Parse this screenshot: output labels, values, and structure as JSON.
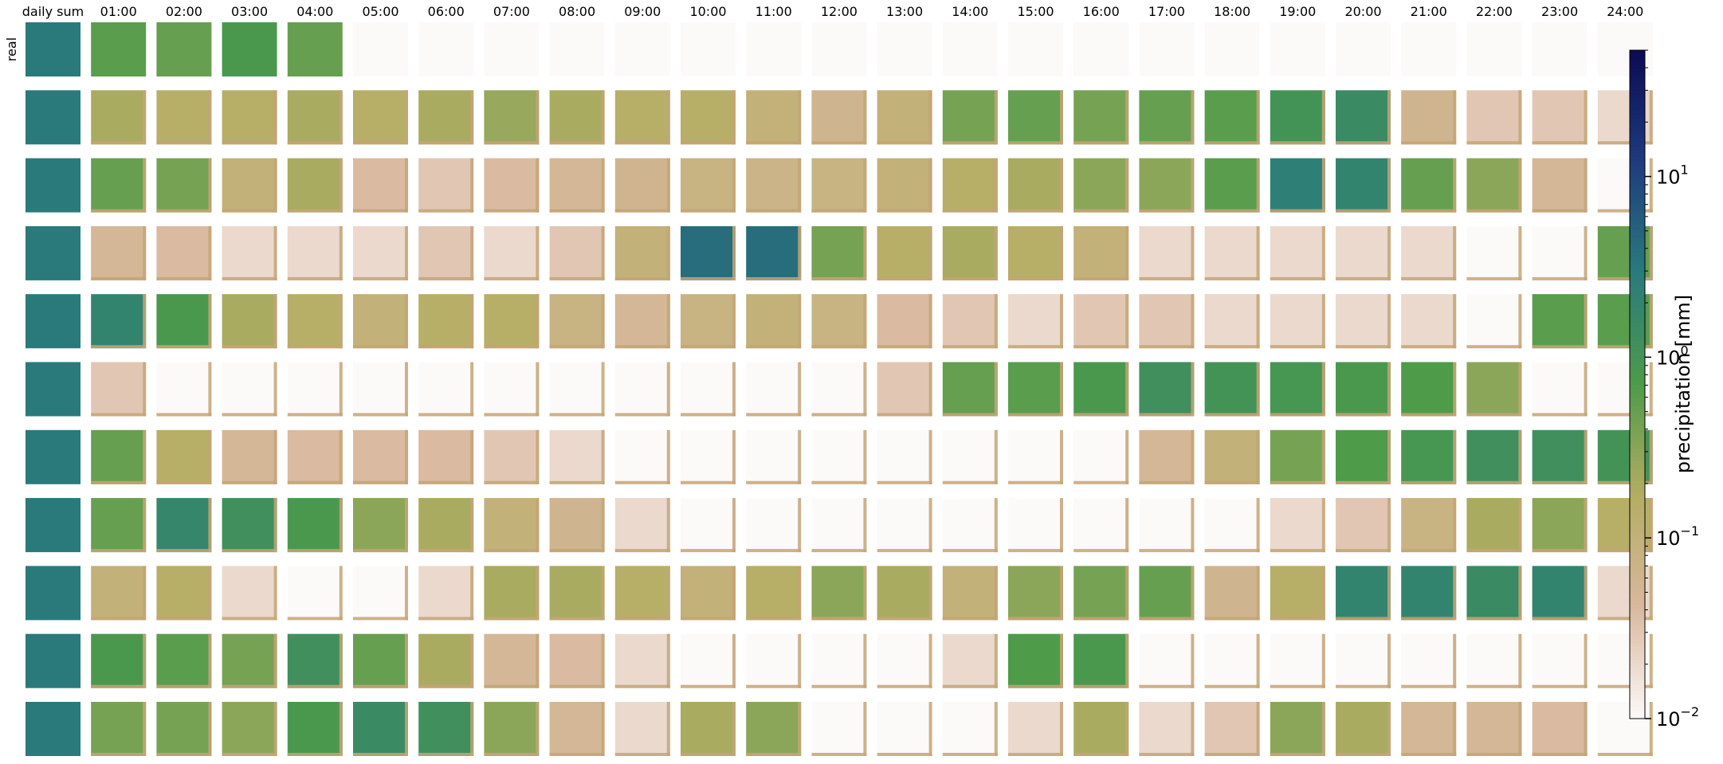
{
  "chart_data": {
    "type": "heatmap",
    "title": "",
    "columns": [
      "daily sum",
      "01:00",
      "02:00",
      "03:00",
      "04:00",
      "05:00",
      "06:00",
      "07:00",
      "08:00",
      "09:00",
      "10:00",
      "11:00",
      "12:00",
      "13:00",
      "14:00",
      "15:00",
      "16:00",
      "17:00",
      "18:00",
      "19:00",
      "20:00",
      "21:00",
      "22:00",
      "23:00",
      "24:00"
    ],
    "row_labels": [
      "real",
      "",
      "",
      "",
      "",
      "",
      "",
      "",
      "",
      "",
      ""
    ],
    "colorbar": {
      "label": "precipitation [mm]",
      "scale": "log",
      "range": [
        0.01,
        50
      ],
      "ticks": [
        {
          "value": 10,
          "base": "10",
          "exp": "1"
        },
        {
          "value": 1,
          "base": "10",
          "exp": "0"
        },
        {
          "value": 0.1,
          "base": "10",
          "exp": "−1"
        },
        {
          "value": 0.01,
          "base": "10",
          "exp": "−2"
        }
      ],
      "colormap": [
        "#fcf9f9",
        "#d9b89e",
        "#b4ad63",
        "#4d9b4a",
        "#2a7b7c",
        "#1e3b7e",
        "#0b0b52"
      ]
    },
    "approx_mean_hourly_mm": [
      [
        3,
        0.6,
        0.5,
        0.8,
        0.5,
        0.01,
        0.01,
        0.01,
        0.01,
        0.01,
        0.01,
        0.01,
        0.01,
        0.01,
        0.01,
        0.01,
        0.01,
        0.01,
        0.01,
        0.01,
        0.01,
        0.01,
        0.01,
        0.01,
        0.01
      ],
      [
        3,
        0.2,
        0.15,
        0.15,
        0.2,
        0.15,
        0.2,
        0.25,
        0.2,
        0.15,
        0.15,
        0.1,
        0.06,
        0.1,
        0.4,
        0.5,
        0.4,
        0.5,
        0.6,
        1.0,
        1.5,
        0.06,
        0.03,
        0.03,
        0.02
      ],
      [
        3,
        0.5,
        0.4,
        0.1,
        0.2,
        0.04,
        0.03,
        0.04,
        0.05,
        0.06,
        0.08,
        0.07,
        0.08,
        0.1,
        0.15,
        0.2,
        0.3,
        0.3,
        0.6,
        2.5,
        2.0,
        0.5,
        0.3,
        0.05,
        0.01
      ],
      [
        3,
        0.05,
        0.04,
        0.02,
        0.02,
        0.02,
        0.03,
        0.02,
        0.03,
        0.1,
        4.0,
        4.0,
        0.4,
        0.15,
        0.2,
        0.15,
        0.1,
        0.02,
        0.02,
        0.02,
        0.02,
        0.02,
        0.01,
        0.01,
        0.5
      ],
      [
        3,
        2.0,
        0.8,
        0.2,
        0.15,
        0.1,
        0.15,
        0.15,
        0.08,
        0.05,
        0.08,
        0.1,
        0.08,
        0.04,
        0.03,
        0.02,
        0.03,
        0.03,
        0.02,
        0.02,
        0.02,
        0.02,
        0.01,
        0.6,
        0.6
      ],
      [
        3,
        0.03,
        0.01,
        0.01,
        0.01,
        0.01,
        0.01,
        0.01,
        0.01,
        0.01,
        0.01,
        0.01,
        0.01,
        0.03,
        0.5,
        0.6,
        0.8,
        1.2,
        1.0,
        0.9,
        0.8,
        0.7,
        0.3,
        0.01,
        0.01
      ],
      [
        3,
        0.5,
        0.15,
        0.05,
        0.04,
        0.04,
        0.04,
        0.03,
        0.02,
        0.01,
        0.01,
        0.01,
        0.01,
        0.01,
        0.01,
        0.01,
        0.01,
        0.05,
        0.1,
        0.4,
        0.7,
        0.9,
        1.2,
        1.2,
        1.0
      ],
      [
        3,
        0.5,
        1.8,
        1.2,
        0.8,
        0.3,
        0.2,
        0.1,
        0.06,
        0.02,
        0.01,
        0.01,
        0.01,
        0.01,
        0.01,
        0.01,
        0.01,
        0.01,
        0.01,
        0.02,
        0.03,
        0.08,
        0.2,
        0.3,
        0.15
      ],
      [
        3,
        0.1,
        0.15,
        0.02,
        0.01,
        0.01,
        0.02,
        0.2,
        0.2,
        0.15,
        0.1,
        0.15,
        0.3,
        0.2,
        0.1,
        0.3,
        0.4,
        0.5,
        0.06,
        0.15,
        2.0,
        2.0,
        1.5,
        2.0,
        0.02
      ],
      [
        3,
        0.8,
        0.6,
        0.4,
        1.2,
        0.5,
        0.2,
        0.05,
        0.04,
        0.02,
        0.01,
        0.01,
        0.01,
        0.01,
        0.02,
        0.7,
        0.8,
        0.01,
        0.01,
        0.01,
        0.01,
        0.01,
        0.01,
        0.01,
        0.01
      ],
      [
        3,
        0.4,
        0.4,
        0.3,
        0.8,
        1.5,
        1.2,
        0.3,
        0.05,
        0.02,
        0.2,
        0.3,
        0.01,
        0.01,
        0.01,
        0.02,
        0.2,
        0.02,
        0.03,
        0.3,
        0.2,
        0.05,
        0.05,
        0.04,
        0.01
      ]
    ]
  }
}
